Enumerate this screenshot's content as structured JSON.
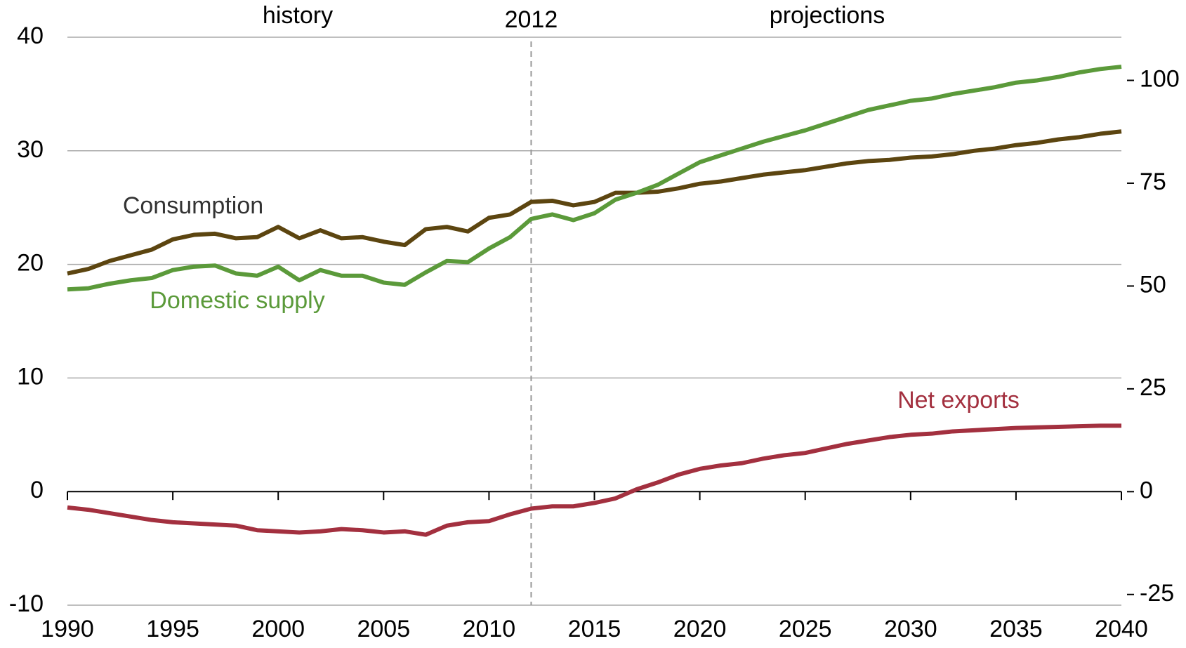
{
  "chart_data": {
    "type": "line",
    "annotations": [
      "history",
      "projections"
    ],
    "divider": 2012,
    "x": [
      1990,
      1991,
      1992,
      1993,
      1994,
      1995,
      1996,
      1997,
      1998,
      1999,
      2000,
      2001,
      2002,
      2003,
      2004,
      2005,
      2006,
      2007,
      2008,
      2009,
      2010,
      2011,
      2012,
      2013,
      2014,
      2015,
      2016,
      2017,
      2018,
      2019,
      2020,
      2021,
      2022,
      2023,
      2024,
      2025,
      2026,
      2027,
      2028,
      2029,
      2030,
      2031,
      2032,
      2033,
      2034,
      2035,
      2036,
      2037,
      2038,
      2039,
      2040
    ],
    "series": [
      {
        "name": "Consumption",
        "color": "#5c4510",
        "values": [
          19.2,
          19.6,
          20.3,
          20.8,
          21.3,
          22.2,
          22.6,
          22.7,
          22.3,
          22.4,
          23.3,
          22.3,
          23.0,
          22.3,
          22.4,
          22.0,
          21.7,
          23.1,
          23.3,
          22.9,
          24.1,
          24.4,
          25.5,
          25.6,
          25.2,
          25.5,
          26.3,
          26.3,
          26.4,
          26.7,
          27.1,
          27.3,
          27.6,
          27.9,
          28.1,
          28.3,
          28.6,
          28.9,
          29.1,
          29.2,
          29.4,
          29.5,
          29.7,
          30.0,
          30.2,
          30.5,
          30.7,
          31.0,
          31.2,
          31.5,
          31.7
        ]
      },
      {
        "name": "Domestic supply",
        "color": "#5b9a3a",
        "values": [
          17.8,
          17.9,
          18.3,
          18.6,
          18.8,
          19.5,
          19.8,
          19.9,
          19.2,
          19.0,
          19.8,
          18.6,
          19.5,
          19.0,
          19.0,
          18.4,
          18.2,
          19.3,
          20.3,
          20.2,
          21.4,
          22.4,
          24.0,
          24.4,
          23.9,
          24.5,
          25.7,
          26.3,
          27.0,
          28.0,
          29.0,
          29.6,
          30.2,
          30.8,
          31.3,
          31.8,
          32.4,
          33.0,
          33.6,
          34.0,
          34.4,
          34.6,
          35.0,
          35.3,
          35.6,
          36.0,
          36.2,
          36.5,
          36.9,
          37.2,
          37.4
        ]
      },
      {
        "name": "Net exports",
        "color": "#a3303f",
        "values": [
          -1.4,
          -1.6,
          -1.9,
          -2.2,
          -2.5,
          -2.7,
          -2.8,
          -2.9,
          -3.0,
          -3.4,
          -3.5,
          -3.6,
          -3.5,
          -3.3,
          -3.4,
          -3.6,
          -3.5,
          -3.8,
          -3.0,
          -2.7,
          -2.6,
          -2.0,
          -1.5,
          -1.3,
          -1.3,
          -1.0,
          -0.6,
          0.2,
          0.8,
          1.5,
          2.0,
          2.3,
          2.5,
          2.9,
          3.2,
          3.4,
          3.8,
          4.2,
          4.5,
          4.8,
          5.0,
          5.1,
          5.3,
          5.4,
          5.5,
          5.6,
          5.65,
          5.7,
          5.75,
          5.8,
          5.8
        ]
      }
    ],
    "xlim": [
      1990,
      2040
    ],
    "xticks": [
      1990,
      1995,
      2000,
      2005,
      2010,
      2015,
      2020,
      2025,
      2030,
      2035,
      2040
    ],
    "ylim": [
      -10,
      40
    ],
    "yticks": [
      -10,
      0,
      10,
      20,
      30,
      40
    ],
    "y2lim": [
      -27.6,
      110.5
    ],
    "y2ticks": [
      -25,
      0,
      25,
      50,
      75,
      100
    ],
    "grid": true
  }
}
